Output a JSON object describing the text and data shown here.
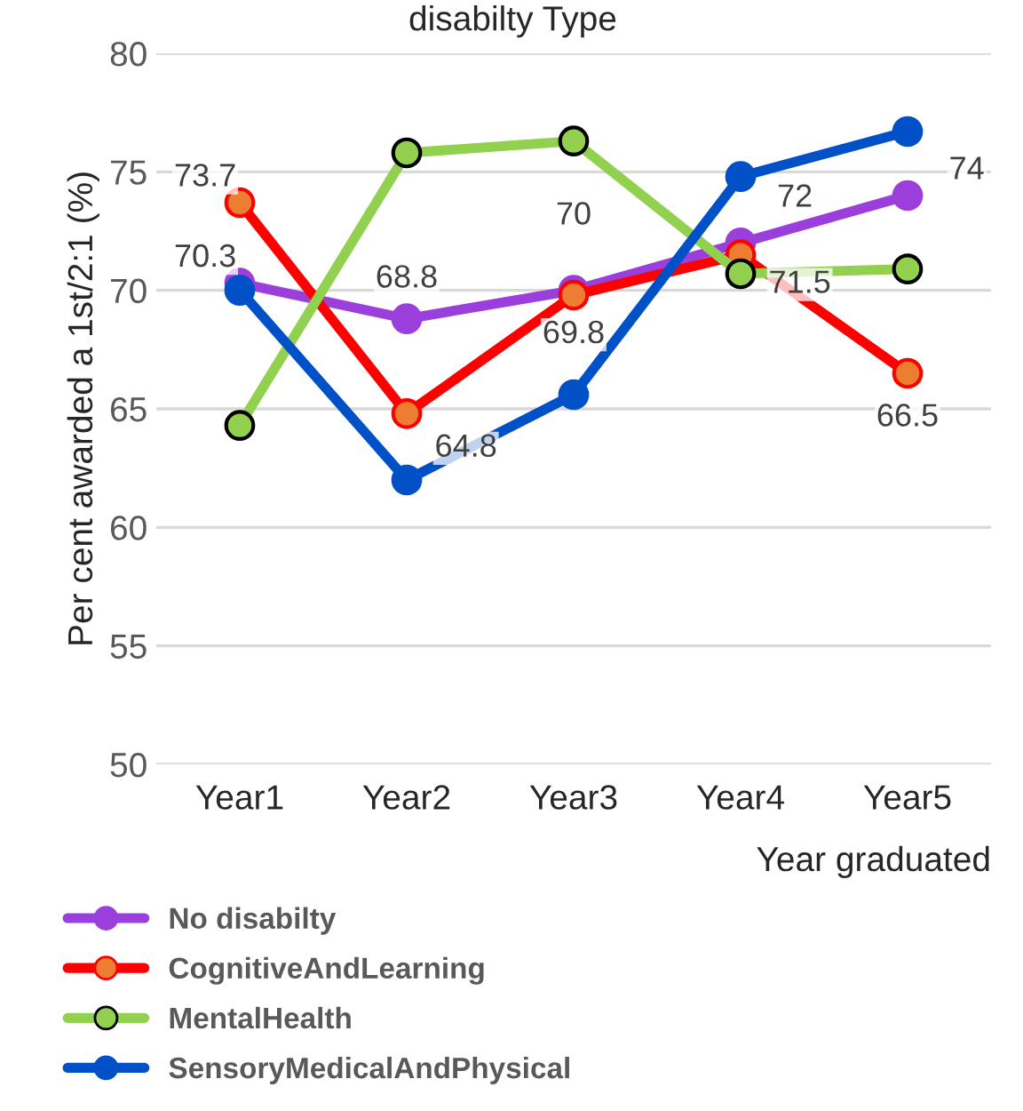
{
  "chart_data": {
    "type": "line",
    "title": "disabilty Type",
    "xlabel": "Year graduated",
    "ylabel": "Per cent awarded a 1st/2:1 (%)",
    "categories": [
      "Year1",
      "Year2",
      "Year3",
      "Year4",
      "Year5"
    ],
    "series": [
      {
        "name": "No disabilty",
        "color": "#9b3fdc",
        "values": [
          70.3,
          68.8,
          70,
          72,
          74
        ],
        "value_labels": [
          "70.3",
          "68.8",
          "70",
          "72",
          "74"
        ]
      },
      {
        "name": "CognitiveAndLearning",
        "color": "#ff0000",
        "values": [
          73.7,
          64.8,
          69.8,
          71.5,
          66.5
        ],
        "value_labels": [
          "73.7",
          "64.8",
          "69.8",
          "71.5",
          "66.5"
        ]
      },
      {
        "name": "MentalHealth",
        "color": "#92d050",
        "values": [
          64.3,
          75.8,
          76.3,
          70.7,
          70.9
        ]
      },
      {
        "name": "SensoryMedicalAndPhysical",
        "color": "#0050c8",
        "values": [
          70.0,
          62.0,
          65.6,
          74.8,
          76.7
        ]
      }
    ],
    "ylim": [
      50,
      80
    ],
    "yticks": [
      50,
      55,
      60,
      65,
      70,
      75,
      80
    ],
    "grid": "y",
    "legend": "bottom left",
    "marker": "circle",
    "line_style": "solid"
  }
}
